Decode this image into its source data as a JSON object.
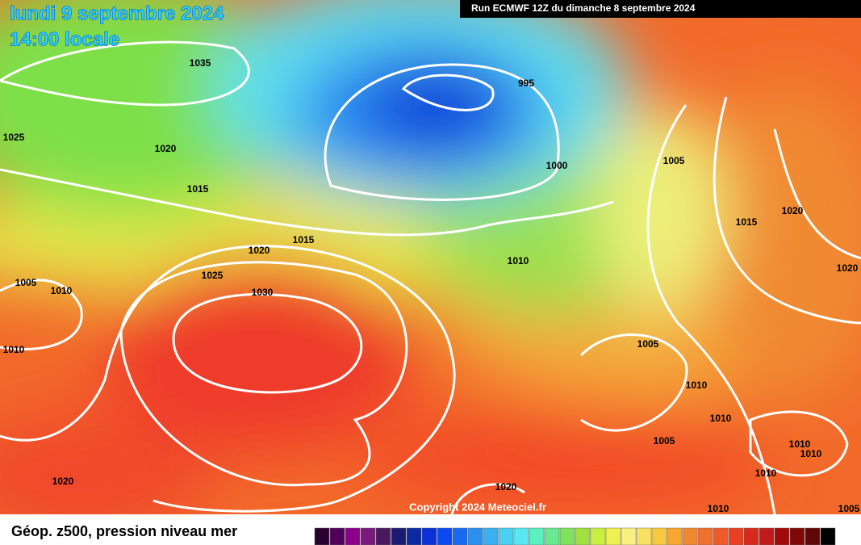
{
  "header": {
    "date": "lundi 9 septembre 2024",
    "time": "14:00 locale",
    "run": "Run ECMWF 12Z du dimanche 8 septembre 2024"
  },
  "map": {
    "copyright": "Copyright 2024 Meteociel.fr",
    "isobar_labels": [
      "1035",
      "1025",
      "1020",
      "1015",
      "995",
      "1000",
      "1015",
      "1020",
      "1025",
      "1030",
      "1005",
      "1010",
      "1010",
      "1020",
      "1010",
      "1005",
      "1015",
      "1020",
      "1020",
      "1005",
      "1010",
      "1010",
      "1005",
      "1010",
      "1010",
      "1010",
      "1020",
      "1010",
      "1005"
    ]
  },
  "legend": {
    "title": "Géop. z500, pression niveau mer"
  }
}
